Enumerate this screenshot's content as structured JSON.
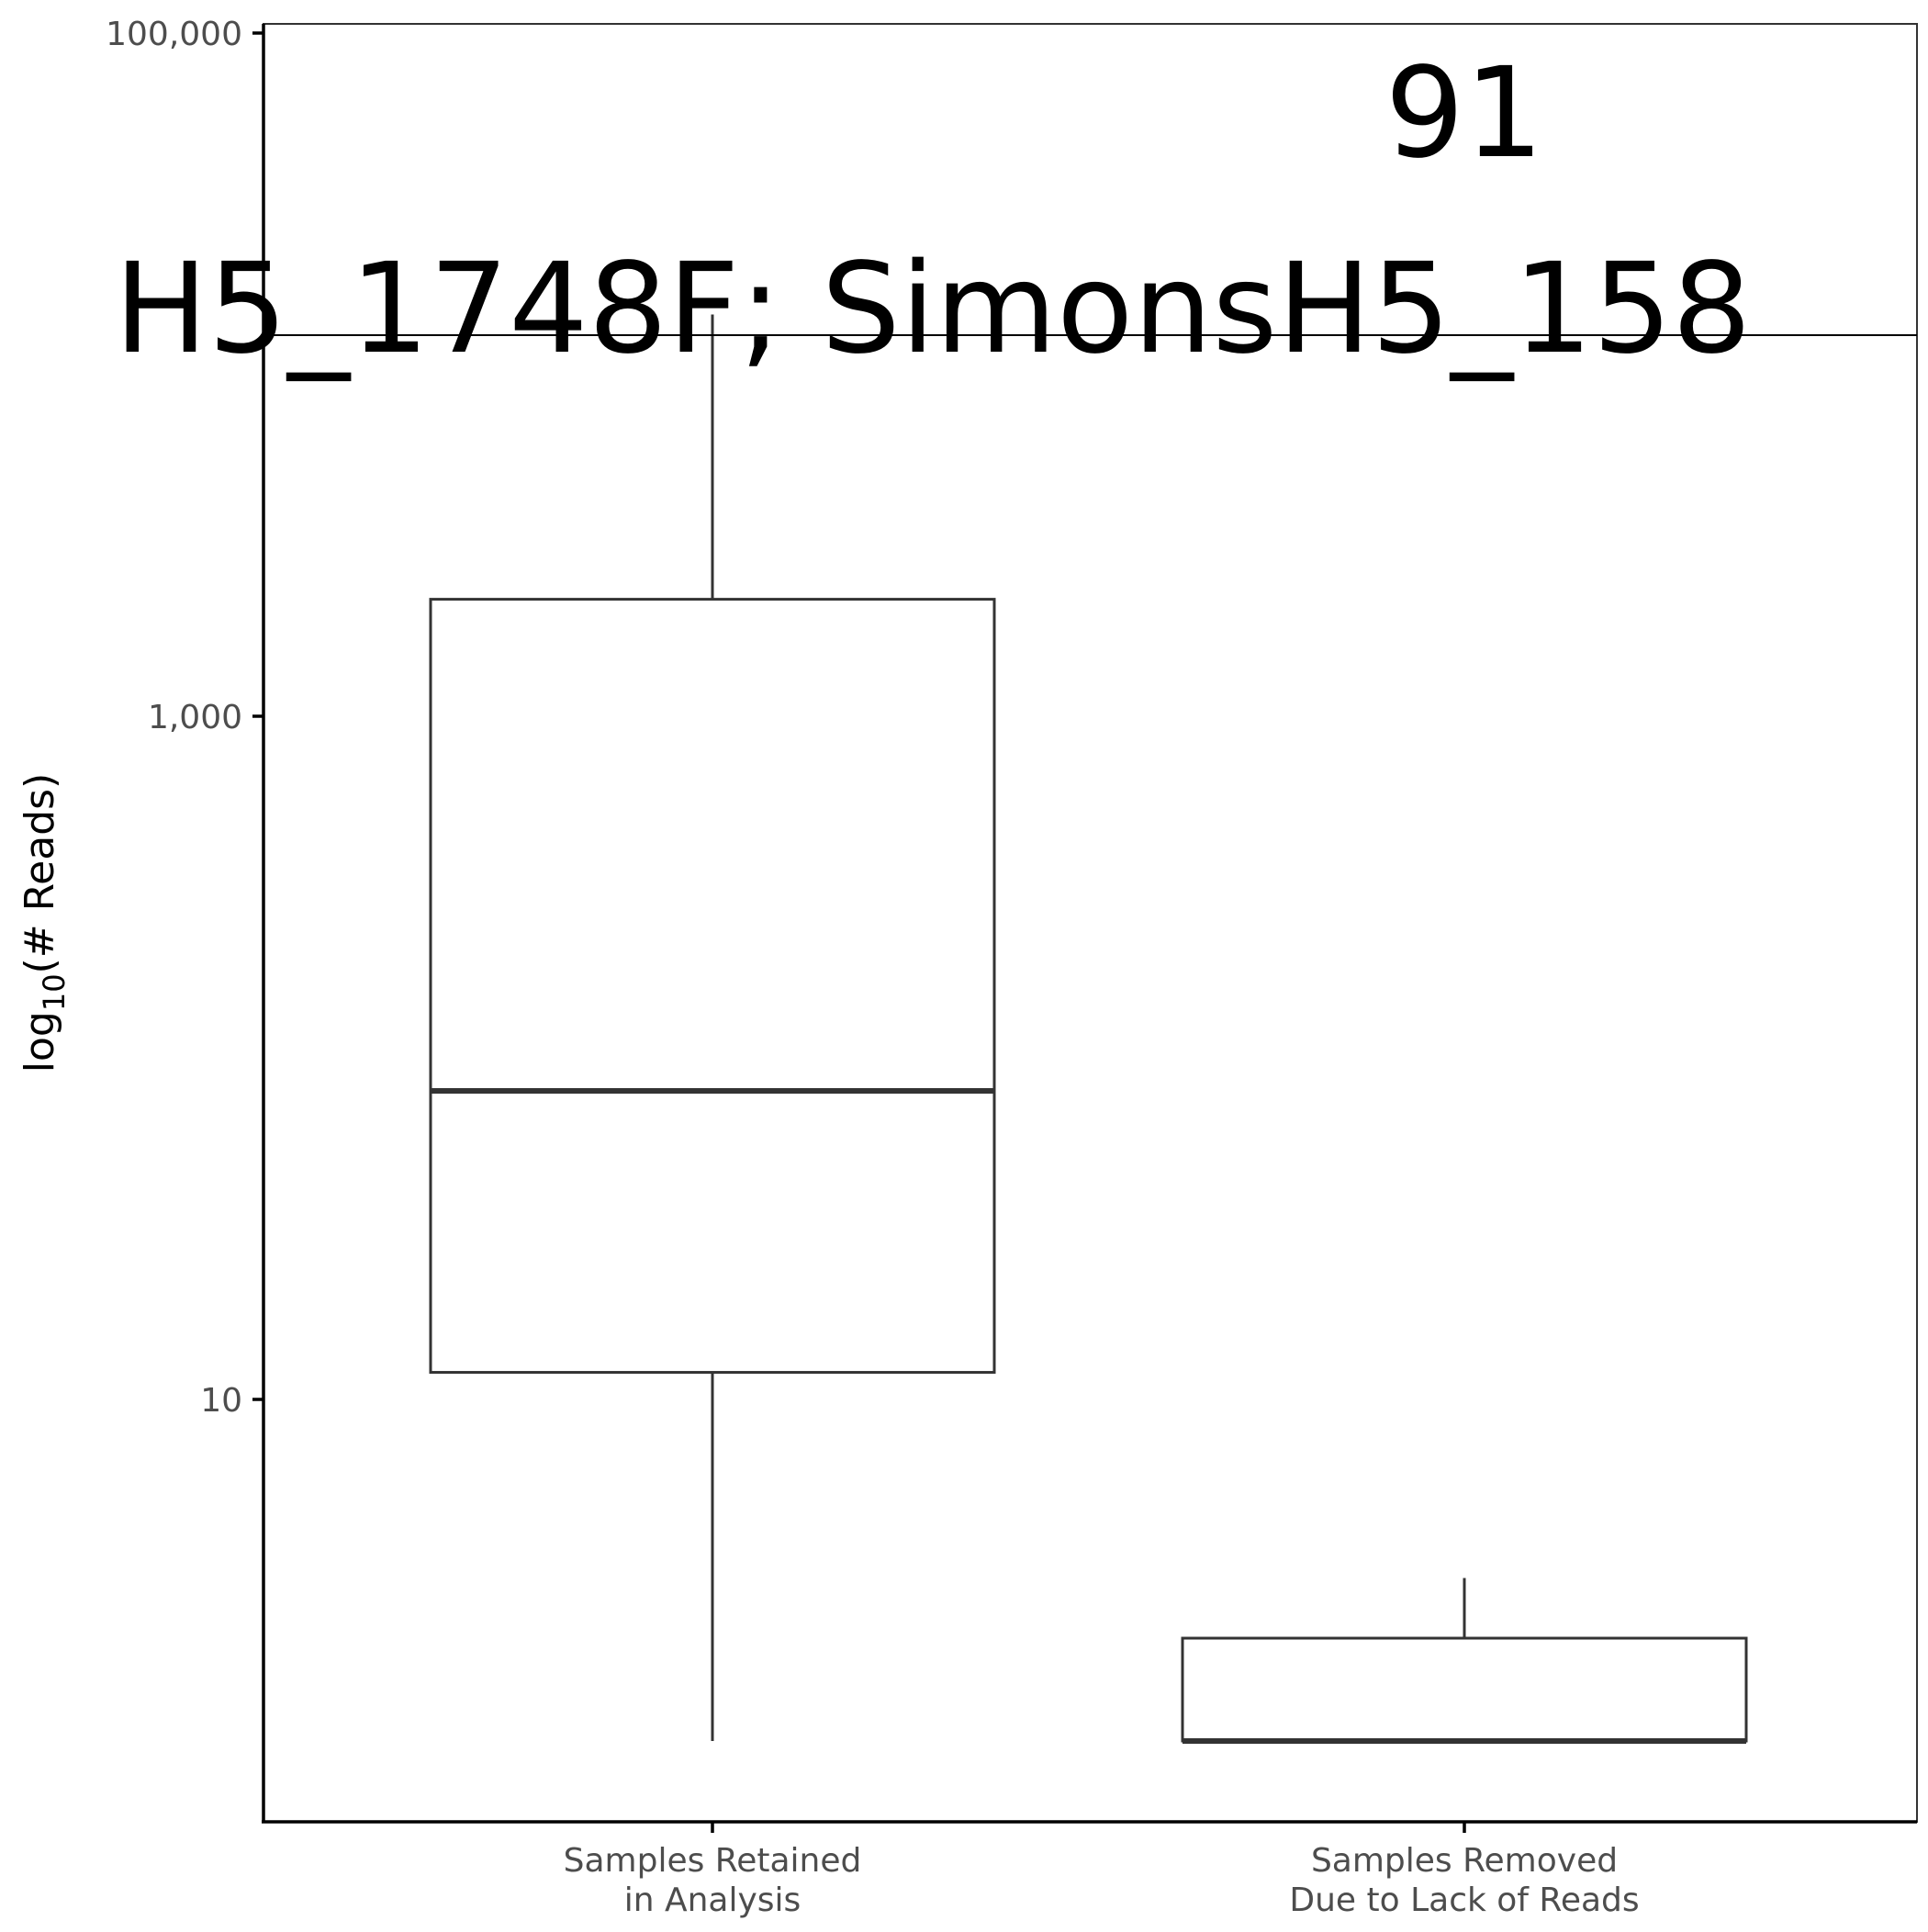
{
  "chart_data": {
    "type": "box",
    "y_scale": "log10",
    "ylim": [
      0.5,
      120000
    ],
    "ylabel_prefix": "log",
    "ylabel_subscript": "10",
    "ylabel_suffix": "(# Reads)",
    "y_ticks": [
      {
        "value": 10,
        "label": "10"
      },
      {
        "value": 1000,
        "label": "1,000"
      },
      {
        "value": 100000,
        "label": "100,000"
      }
    ],
    "categories": [
      {
        "line1": "Samples Retained",
        "line2": "in Analysis"
      },
      {
        "line1": "Samples Removed",
        "line2": "Due to Lack of Reads"
      }
    ],
    "boxes": [
      {
        "min": 1,
        "q1": 12,
        "median": 80,
        "q3": 2200,
        "max": 15000
      },
      {
        "min": 1,
        "q1": 1,
        "median": 1,
        "q3": 2,
        "max": 3
      }
    ],
    "annotations": {
      "count_label": "91",
      "sample_label": "H5_1748F; SimonsH5_158"
    },
    "grid": false,
    "colors": {
      "box_stroke": "#333333",
      "axis": "#000000",
      "tick_label": "#4d4d4d",
      "annotation": "#000000"
    }
  }
}
